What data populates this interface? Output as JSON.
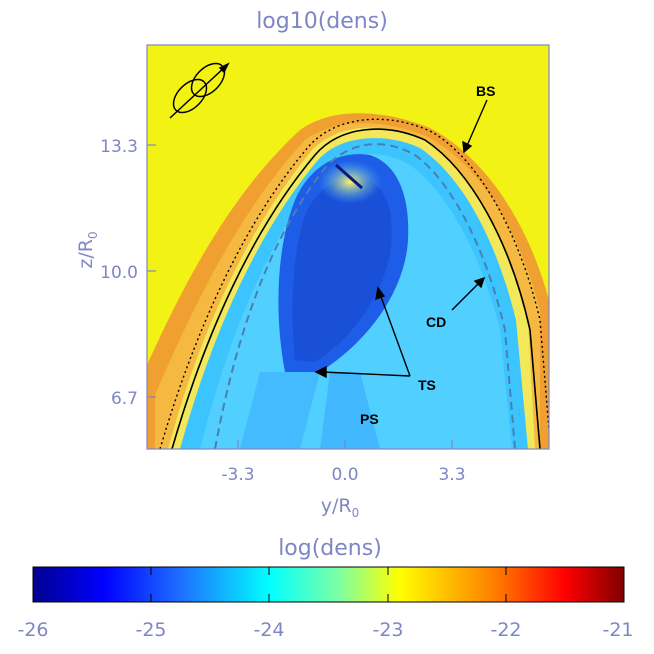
{
  "plot": {
    "title": "log10(dens)",
    "xlabel": "y/R",
    "xlabel_sub": "0",
    "ylabel": "z/R",
    "ylabel_sub": "0",
    "xticks": [
      "-3.3",
      "0.0",
      "3.3"
    ],
    "yticks": [
      "13.3",
      "10.0",
      "6.7"
    ],
    "annotations": {
      "bs": "BS",
      "cd": "CD",
      "ts": "TS",
      "ps": "PS"
    }
  },
  "colorbar": {
    "title": "log(dens)",
    "ticks": [
      "-26",
      "-25",
      "-24",
      "-23",
      "-22",
      "-21"
    ],
    "min": -26,
    "max": -21
  },
  "colors": {
    "background": "#f2f214",
    "axis": "#7f86c4",
    "sheath_orange": "#f39a2a",
    "wind_blue": "#2b8cf2"
  },
  "icons": {
    "orbit": "orbit-icon"
  }
}
